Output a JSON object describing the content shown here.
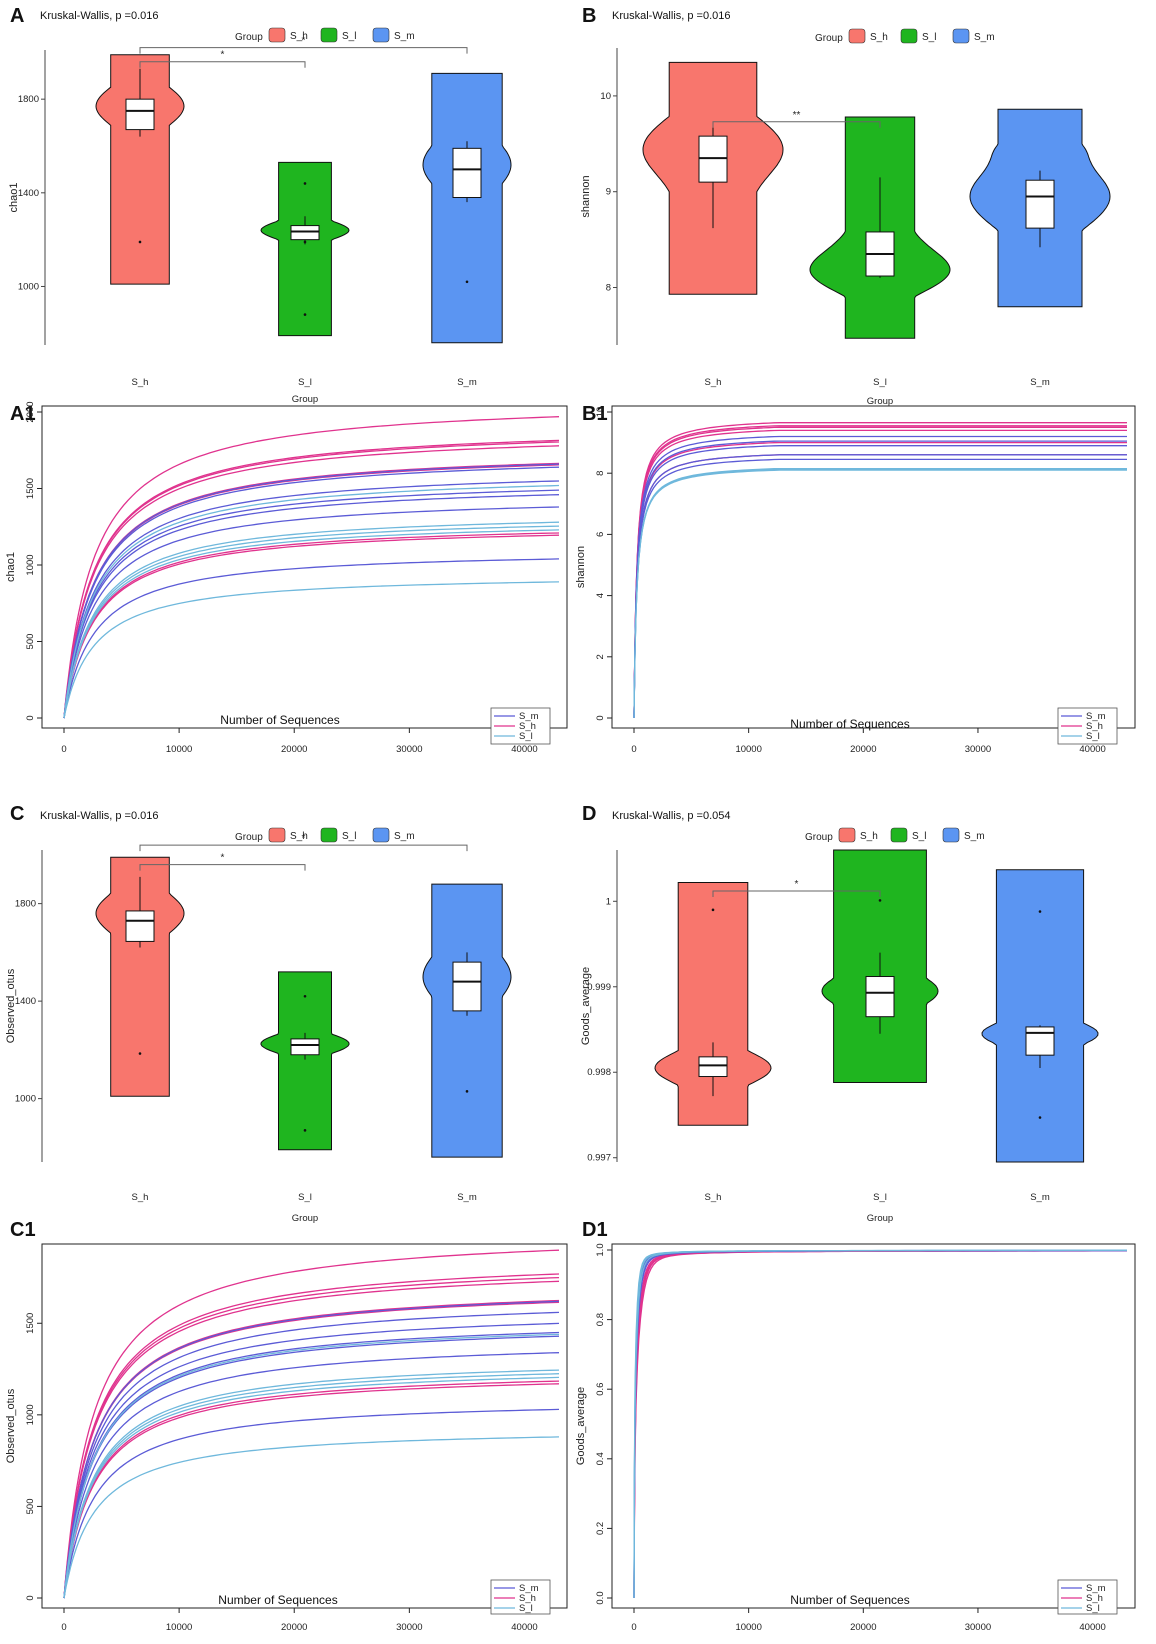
{
  "colors": {
    "S_h": "#f8766d",
    "S_l": "#1fb51f",
    "S_m": "#5b95f2",
    "curve_S_m": "#5b5bd6",
    "curve_S_h": "#e0338e",
    "curve_S_l": "#6fb8dc"
  },
  "chart_data": [
    {
      "id": "A",
      "type": "violin",
      "subtitle": "Kruskal-Wallis, p =0.016",
      "legend_title": "Group",
      "groups": [
        "S_h",
        "S_l",
        "S_m"
      ],
      "xlabel": "Group",
      "ylabel": "chao1",
      "ylim": [
        750,
        2010
      ],
      "yticks": [
        1000,
        1400,
        1800
      ],
      "violins": [
        {
          "group": "S_h",
          "modes": [
            [
              1770,
              0.9,
              90
            ],
            [
              1190,
              0.35,
              40
            ]
          ],
          "q1": 1670,
          "median": 1750,
          "q3": 1800,
          "wlo": 1640,
          "whi": 1930,
          "outliers": [
            1190
          ],
          "ymin": 1010,
          "ymax": 1990
        },
        {
          "group": "S_l",
          "modes": [
            [
              1240,
              1.0,
              40
            ],
            [
              1440,
              0.35,
              25
            ],
            [
              880,
              0.35,
              25
            ]
          ],
          "q1": 1200,
          "median": 1235,
          "q3": 1260,
          "wlo": 1180,
          "whi": 1300,
          "outliers": [
            1440,
            1190,
            880
          ],
          "ymin": 790,
          "ymax": 1530
        },
        {
          "group": "S_m",
          "modes": [
            [
              1520,
              0.75,
              120
            ],
            [
              1100,
              0.2,
              90
            ]
          ],
          "q1": 1380,
          "median": 1500,
          "q3": 1590,
          "wlo": 1360,
          "whi": 1620,
          "outliers": [
            1020
          ],
          "ymin": 760,
          "ymax": 1910
        }
      ],
      "comparisons": [
        {
          "from": "S_h",
          "to": "S_l",
          "label": "*",
          "y": 1960
        },
        {
          "from": "S_h",
          "to": "S_m",
          "label": "*",
          "y": 2020
        }
      ]
    },
    {
      "id": "B",
      "type": "violin",
      "subtitle": "Kruskal-Wallis, p =0.016",
      "legend_title": "Group",
      "groups": [
        "S_h",
        "S_l",
        "S_m"
      ],
      "xlabel": "Group",
      "ylabel": "shannon",
      "ylim": [
        7.4,
        10.5
      ],
      "yticks": [
        8,
        9,
        10
      ],
      "violins": [
        {
          "group": "S_h",
          "modes": [
            [
              9.45,
              0.95,
              0.35
            ],
            [
              8.6,
              0.45,
              0.3
            ]
          ],
          "q1": 9.1,
          "median": 9.35,
          "q3": 9.58,
          "wlo": 8.62,
          "whi": 9.72,
          "outliers": [],
          "ymin": 7.93,
          "ymax": 10.35
        },
        {
          "group": "S_l",
          "modes": [
            [
              8.15,
              1.0,
              0.22
            ],
            [
              8.6,
              0.45,
              0.35
            ],
            [
              9.2,
              0.12,
              0.25
            ]
          ],
          "q1": 8.12,
          "median": 8.35,
          "q3": 8.58,
          "wlo": 8.1,
          "whi": 9.15,
          "outliers": [],
          "ymin": 7.47,
          "ymax": 9.78
        },
        {
          "group": "S_m",
          "modes": [
            [
              8.95,
              1.0,
              0.35
            ],
            [
              9.5,
              0.3,
              0.15
            ]
          ],
          "q1": 8.62,
          "median": 8.95,
          "q3": 9.12,
          "wlo": 8.42,
          "whi": 9.22,
          "outliers": [],
          "ymin": 7.8,
          "ymax": 9.86
        }
      ],
      "comparisons": [
        {
          "from": "S_h",
          "to": "S_l",
          "label": "**",
          "y": 9.73
        }
      ]
    },
    {
      "id": "A1",
      "type": "line",
      "xlabel": "Number of Sequences",
      "ylabel": "chao1",
      "xlim": [
        0,
        43000
      ],
      "ylim": [
        0,
        2000
      ],
      "xticks": [
        0,
        10000,
        20000,
        30000,
        40000
      ],
      "yticks": [
        0,
        500,
        1000,
        1500,
        2000
      ],
      "legend": [
        "S_m",
        "S_h",
        "S_l"
      ],
      "series": [
        {
          "group": "S_h",
          "final": 1970
        },
        {
          "group": "S_h",
          "final": 1815
        },
        {
          "group": "S_h",
          "final": 1805
        },
        {
          "group": "S_h",
          "final": 1780
        },
        {
          "group": "S_h",
          "final": 1665
        },
        {
          "group": "S_h",
          "final": 1655
        },
        {
          "group": "S_h",
          "final": 1210
        },
        {
          "group": "S_h",
          "final": 1195
        },
        {
          "group": "S_m",
          "final": 1660
        },
        {
          "group": "S_m",
          "final": 1640
        },
        {
          "group": "S_m",
          "final": 1550
        },
        {
          "group": "S_m",
          "final": 1490
        },
        {
          "group": "S_m",
          "final": 1460
        },
        {
          "group": "S_m",
          "final": 1380
        },
        {
          "group": "S_m",
          "final": 1040
        },
        {
          "group": "S_l",
          "final": 1520
        },
        {
          "group": "S_l",
          "final": 1280
        },
        {
          "group": "S_l",
          "final": 1255
        },
        {
          "group": "S_l",
          "final": 1230
        },
        {
          "group": "S_l",
          "final": 890
        }
      ]
    },
    {
      "id": "B1",
      "type": "line",
      "xlabel": "Number of Sequences",
      "ylabel": "shannon",
      "xlim": [
        0,
        43000
      ],
      "ylim": [
        0,
        10
      ],
      "xticks": [
        0,
        10000,
        20000,
        30000,
        40000
      ],
      "yticks": [
        0,
        2,
        4,
        6,
        8,
        10
      ],
      "legend": [
        "S_m",
        "S_h",
        "S_l"
      ],
      "series": [
        {
          "group": "S_h",
          "final": 9.65
        },
        {
          "group": "S_h",
          "final": 9.55
        },
        {
          "group": "S_h",
          "final": 9.5
        },
        {
          "group": "S_h",
          "final": 9.4
        },
        {
          "group": "S_h",
          "final": 9.0
        },
        {
          "group": "S_h",
          "final": 8.6
        },
        {
          "group": "S_m",
          "final": 9.2
        },
        {
          "group": "S_m",
          "final": 9.05
        },
        {
          "group": "S_m",
          "final": 8.9
        },
        {
          "group": "S_m",
          "final": 8.6
        },
        {
          "group": "S_m",
          "final": 8.45
        },
        {
          "group": "S_l",
          "final": 8.15
        },
        {
          "group": "S_l",
          "final": 8.12
        },
        {
          "group": "S_l",
          "final": 8.1
        }
      ]
    },
    {
      "id": "C",
      "type": "violin",
      "subtitle": "Kruskal-Wallis, p =0.016",
      "legend_title": "Group",
      "groups": [
        "S_h",
        "S_l",
        "S_m"
      ],
      "xlabel": "Group",
      "ylabel": "Observed_otus",
      "ylim": [
        740,
        2020
      ],
      "yticks": [
        1000,
        1400,
        1800
      ],
      "violins": [
        {
          "group": "S_h",
          "modes": [
            [
              1760,
              0.9,
              90
            ],
            [
              1185,
              0.35,
              45
            ]
          ],
          "q1": 1645,
          "median": 1730,
          "q3": 1770,
          "wlo": 1620,
          "whi": 1910,
          "outliers": [
            1185
          ],
          "ymin": 1010,
          "ymax": 1990
        },
        {
          "group": "S_l",
          "modes": [
            [
              1225,
              1.0,
              40
            ],
            [
              1420,
              0.35,
              25
            ],
            [
              870,
              0.35,
              25
            ]
          ],
          "q1": 1180,
          "median": 1220,
          "q3": 1245,
          "wlo": 1160,
          "whi": 1270,
          "outliers": [
            1420,
            870
          ],
          "ymin": 790,
          "ymax": 1520
        },
        {
          "group": "S_m",
          "modes": [
            [
              1500,
              0.75,
              120
            ],
            [
              1080,
              0.2,
              90
            ]
          ],
          "q1": 1360,
          "median": 1480,
          "q3": 1560,
          "wlo": 1340,
          "whi": 1600,
          "outliers": [
            1030
          ],
          "ymin": 760,
          "ymax": 1880
        }
      ],
      "comparisons": [
        {
          "from": "S_h",
          "to": "S_l",
          "label": "*",
          "y": 1960
        },
        {
          "from": "S_h",
          "to": "S_m",
          "label": "*",
          "y": 2040
        }
      ]
    },
    {
      "id": "D",
      "type": "violin",
      "subtitle": "Kruskal-Wallis, p =0.054",
      "legend_title": "Group",
      "groups": [
        "S_h",
        "S_l",
        "S_m"
      ],
      "xlabel": "Group",
      "ylabel": "Goods_average",
      "ylim": [
        0.99695,
        1.0006
      ],
      "yticks": [
        0.997,
        0.998,
        0.999,
        1.0
      ],
      "violins": [
        {
          "group": "S_h",
          "modes": [
            [
              0.99805,
              1.0,
              0.0002
            ],
            [
              0.9999,
              0.45,
              0.00012
            ]
          ],
          "q1": 0.99795,
          "median": 0.99808,
          "q3": 0.99818,
          "wlo": 0.99772,
          "whi": 0.99835,
          "outliers": [
            0.9999
          ],
          "ymin": 0.99738,
          "ymax": 1.00022
        },
        {
          "group": "S_l",
          "modes": [
            [
              0.99895,
              0.75,
              0.00022
            ],
            [
              0.99995,
              0.4,
              0.00018
            ]
          ],
          "q1": 0.99865,
          "median": 0.99893,
          "q3": 0.99912,
          "wlo": 0.99845,
          "whi": 0.9994,
          "outliers": [
            1.00001
          ],
          "ymin": 0.99788,
          "ymax": 1.0006
        },
        {
          "group": "S_m",
          "modes": [
            [
              0.99845,
              0.8,
              0.00016
            ],
            [
              0.99985,
              0.35,
              0.00012
            ],
            [
              0.9975,
              0.3,
              0.00015
            ]
          ],
          "q1": 0.9982,
          "median": 0.99846,
          "q3": 0.99853,
          "wlo": 0.99805,
          "whi": 0.99855,
          "outliers": [
            0.99988,
            0.99747
          ],
          "ymin": 0.99695,
          "ymax": 1.00037
        }
      ],
      "comparisons": [
        {
          "from": "S_h",
          "to": "S_l",
          "label": "*",
          "y": 1.00012
        }
      ]
    },
    {
      "id": "C1",
      "type": "line",
      "xlabel": "Number of Sequences",
      "ylabel": "Observed_otus",
      "xlim": [
        0,
        43000
      ],
      "ylim": [
        0,
        1900
      ],
      "xticks": [
        0,
        10000,
        20000,
        30000,
        40000
      ],
      "yticks": [
        0,
        500,
        1000,
        1500
      ],
      "legend": [
        "S_m",
        "S_h",
        "S_l"
      ],
      "series": [
        {
          "group": "S_h",
          "final": 1900
        },
        {
          "group": "S_h",
          "final": 1770
        },
        {
          "group": "S_h",
          "final": 1750
        },
        {
          "group": "S_h",
          "final": 1730
        },
        {
          "group": "S_h",
          "final": 1625
        },
        {
          "group": "S_h",
          "final": 1615
        },
        {
          "group": "S_h",
          "final": 1185
        },
        {
          "group": "S_h",
          "final": 1170
        },
        {
          "group": "S_m",
          "final": 1620
        },
        {
          "group": "S_m",
          "final": 1560
        },
        {
          "group": "S_m",
          "final": 1500
        },
        {
          "group": "S_m",
          "final": 1450
        },
        {
          "group": "S_m",
          "final": 1430
        },
        {
          "group": "S_m",
          "final": 1340
        },
        {
          "group": "S_m",
          "final": 1030
        },
        {
          "group": "S_l",
          "final": 1440
        },
        {
          "group": "S_l",
          "final": 1245
        },
        {
          "group": "S_l",
          "final": 1225
        },
        {
          "group": "S_l",
          "final": 1205
        },
        {
          "group": "S_l",
          "final": 880
        }
      ]
    },
    {
      "id": "D1",
      "type": "line",
      "xlabel": "Number of Sequences",
      "ylabel": "Goods_average",
      "xlim": [
        0,
        43000
      ],
      "ylim": [
        0,
        1.0
      ],
      "xticks": [
        0,
        10000,
        20000,
        30000,
        40000
      ],
      "yticks": [
        0.0,
        0.2,
        0.4,
        0.6,
        0.8,
        1.0
      ],
      "legend": [
        "S_m",
        "S_h",
        "S_l"
      ],
      "series": [
        {
          "group": "S_h",
          "final": 0.9985,
          "k": 1500
        },
        {
          "group": "S_h",
          "final": 0.9985,
          "k": 1350
        },
        {
          "group": "S_h",
          "final": 0.9985,
          "k": 1250
        },
        {
          "group": "S_h",
          "final": 0.999,
          "k": 1150
        },
        {
          "group": "S_m",
          "final": 0.999,
          "k": 1000
        },
        {
          "group": "S_m",
          "final": 0.999,
          "k": 900
        },
        {
          "group": "S_m",
          "final": 0.9995,
          "k": 780
        },
        {
          "group": "S_l",
          "final": 0.9995,
          "k": 850
        },
        {
          "group": "S_l",
          "final": 0.9995,
          "k": 700
        },
        {
          "group": "S_l",
          "final": 0.9995,
          "k": 620
        }
      ]
    }
  ]
}
